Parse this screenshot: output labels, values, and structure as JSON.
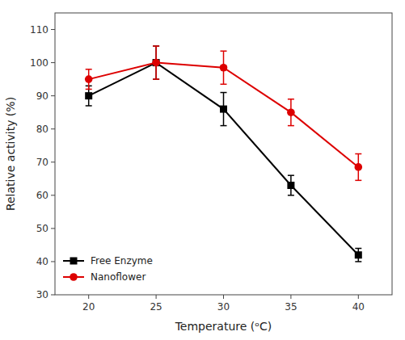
{
  "chart_data": {
    "type": "line",
    "xlabel": "Temperature (ᵒC)",
    "ylabel": "Relative activity (%)",
    "x": [
      20,
      25,
      30,
      35,
      40
    ],
    "series": [
      {
        "name": "Free Enzyme",
        "color": "#000000",
        "marker": "square",
        "values": [
          90,
          100,
          86,
          63,
          42
        ],
        "errors": [
          3,
          5,
          5,
          3,
          2
        ]
      },
      {
        "name": "Nanoflower",
        "color": "#dd0000",
        "marker": "circle",
        "values": [
          95,
          100,
          98.5,
          85,
          68.5
        ],
        "errors": [
          3,
          5,
          5,
          4,
          4
        ]
      }
    ],
    "xlim": [
      17.5,
      42.5
    ],
    "ylim": [
      30,
      115
    ],
    "xticks": [
      20,
      25,
      30,
      35,
      40
    ],
    "yticks": [
      30,
      40,
      50,
      60,
      70,
      80,
      90,
      100,
      110
    ],
    "grid": false,
    "legend": "lower left"
  }
}
